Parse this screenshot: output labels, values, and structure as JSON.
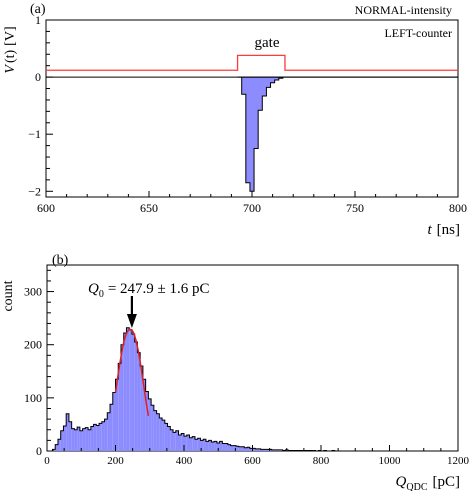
{
  "colors": {
    "signal_fill": "#8c8cff",
    "signal_line": "#000000",
    "gate_line": "#ff3a3a",
    "fit_line": "#e02020"
  },
  "chart_data": [
    {
      "type": "area",
      "panel_label": "(a)",
      "ylabel_prefix": "V",
      "ylabel_var": "(t)",
      "ylabel_unit": "[V]",
      "xlabel_var": "t",
      "xlabel_unit": "[ns]",
      "xlim": [
        600,
        800
      ],
      "ylim": [
        -2.1,
        1
      ],
      "x_ticks": [
        "600",
        "650",
        "700",
        "750",
        "800"
      ],
      "y_ticks": [
        "-2",
        "-1",
        "0",
        "1"
      ],
      "annotations": [
        "NORMAL-intensity",
        "LEFT-counter",
        "gate"
      ],
      "gate": {
        "x": [
          600,
          693,
          693,
          716,
          716,
          800
        ],
        "y": [
          0.12,
          0.12,
          0.38,
          0.38,
          0.12,
          0.12
        ]
      },
      "signal": {
        "x": [
          693,
          695,
          697,
          699,
          701,
          703,
          705,
          707,
          709,
          711,
          713,
          715,
          800
        ],
        "y": [
          0.0,
          -0.3,
          -1.85,
          -2.0,
          -1.25,
          -0.58,
          -0.33,
          -0.18,
          -0.1,
          -0.05,
          -0.02,
          0.0,
          0.0
        ]
      }
    },
    {
      "type": "bar",
      "panel_label": "(b)",
      "ylabel": "count",
      "xlabel_var": "Q",
      "xlabel_sub": "QDC",
      "xlabel_unit": "[pC]",
      "xlim": [
        0,
        1200
      ],
      "ylim": [
        0,
        350
      ],
      "x_ticks": [
        "0",
        "200",
        "400",
        "600",
        "800",
        "1000",
        "1200"
      ],
      "y_ticks": [
        "0",
        "100",
        "200",
        "300"
      ],
      "annotation_var": "Q",
      "annotation_sub": "0",
      "annotation_text": "= 247.9 ± 1.6 pC",
      "bin_width": 8,
      "bin_start": [
        0,
        8,
        16,
        24,
        32,
        40,
        48,
        56,
        64,
        72,
        80,
        88,
        96,
        104,
        112,
        120,
        128,
        136,
        144,
        152,
        160,
        168,
        176,
        184,
        192,
        200,
        208,
        216,
        224,
        232,
        240,
        248,
        256,
        264,
        272,
        280,
        288,
        296,
        304,
        312,
        320,
        328,
        336,
        344,
        352,
        360,
        368,
        376,
        384,
        392,
        400,
        408,
        416,
        424,
        432,
        440,
        448,
        456,
        464,
        472,
        480,
        488,
        496,
        504,
        512,
        520,
        528,
        536,
        544,
        552,
        560,
        568,
        576,
        584,
        592,
        600,
        608,
        616,
        624,
        632,
        640,
        648,
        656,
        664,
        672,
        680,
        688,
        696,
        704,
        712,
        720,
        728,
        736,
        744,
        752,
        760,
        768,
        776,
        784,
        792,
        800,
        808,
        816,
        824,
        832,
        840,
        848,
        856,
        864,
        872,
        880,
        888,
        896,
        904,
        912,
        920,
        928,
        936,
        944,
        952,
        960,
        968,
        976,
        984,
        992,
        1000,
        1008,
        1016,
        1024,
        1032,
        1040,
        1048,
        1056,
        1064,
        1072,
        1080,
        1088,
        1096,
        1104,
        1112,
        1120,
        1128,
        1136,
        1144,
        1152,
        1160,
        1168,
        1176,
        1184,
        1192
      ],
      "values": [
        0,
        0,
        3,
        12,
        22,
        38,
        47,
        70,
        55,
        42,
        40,
        45,
        38,
        42,
        44,
        40,
        46,
        50,
        48,
        52,
        55,
        60,
        72,
        88,
        110,
        135,
        165,
        200,
        222,
        232,
        228,
        220,
        205,
        185,
        160,
        135,
        112,
        98,
        86,
        76,
        70,
        62,
        58,
        52,
        46,
        40,
        35,
        38,
        30,
        33,
        28,
        30,
        25,
        27,
        22,
        24,
        20,
        22,
        18,
        20,
        17,
        18,
        15,
        18,
        14,
        14,
        12,
        10,
        10,
        9,
        8,
        8,
        6,
        7,
        5,
        5,
        4,
        4,
        3,
        3,
        3,
        3,
        2,
        2,
        2,
        2,
        1,
        2,
        1,
        1,
        1,
        1,
        1,
        1,
        1,
        1,
        1,
        1,
        0,
        1,
        0,
        1,
        0,
        0,
        1,
        0,
        0,
        0,
        0,
        0,
        0,
        0,
        0,
        0,
        0,
        0,
        0,
        0,
        0,
        0,
        0,
        0,
        0,
        0,
        0,
        0,
        0,
        0,
        0,
        0,
        0,
        0,
        0,
        0,
        0,
        0,
        0,
        0,
        0,
        0,
        0,
        0,
        0,
        0,
        0,
        0,
        0,
        0,
        0,
        0
      ],
      "fit": {
        "x": [
          200,
          206,
          212,
          218,
          224,
          230,
          236,
          242,
          248,
          254,
          260,
          266,
          272,
          278,
          284,
          290,
          296
        ],
        "y": [
          110,
          137,
          162,
          185,
          204,
          218,
          226,
          229,
          228,
          221,
          208,
          190,
          168,
          143,
          116,
          90,
          66
        ]
      },
      "peak": 247.9
    }
  ]
}
